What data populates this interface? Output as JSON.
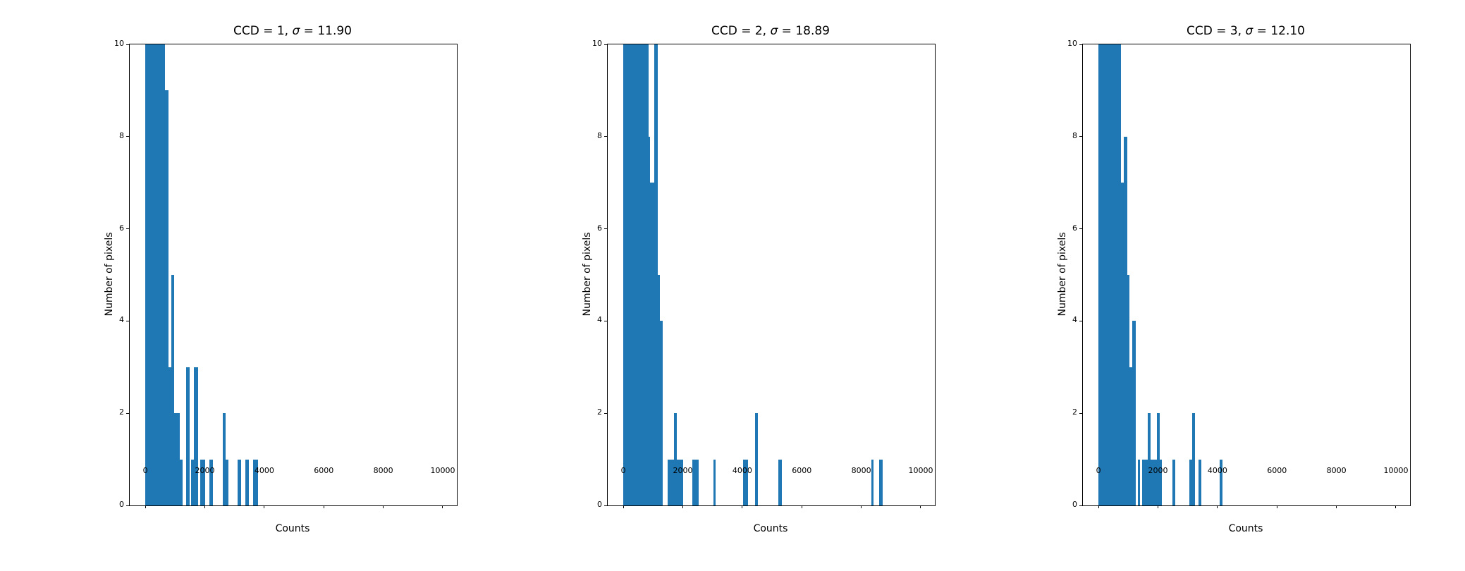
{
  "figure": {
    "background": "#ffffff",
    "bar_color": "#1f77b4",
    "spine_color": "#000000",
    "text_color": "#000000"
  },
  "chart_data": [
    {
      "type": "bar",
      "title": "CCD = 1, σ = 11.90",
      "title_prefix": "CCD = 1, ",
      "sigma_symbol": "σ",
      "title_suffix": " = 11.90",
      "ccd": 1,
      "sigma": 11.9,
      "xlabel": "Counts",
      "ylabel": "Number of pixels",
      "xlim": [
        -525,
        10475
      ],
      "ylim": [
        0,
        10
      ],
      "xticks": [
        0,
        2000,
        4000,
        6000,
        8000,
        10000
      ],
      "yticks": [
        0,
        2,
        4,
        6,
        8,
        10
      ],
      "grid": false,
      "legend": null,
      "note": "tallest bars are clipped at the y-axis top (10)",
      "bars": [
        {
          "x0": 0,
          "x1": 660,
          "h": 10
        },
        {
          "x0": 660,
          "x1": 780,
          "h": 9
        },
        {
          "x0": 780,
          "x1": 880,
          "h": 3
        },
        {
          "x0": 880,
          "x1": 980,
          "h": 5
        },
        {
          "x0": 980,
          "x1": 1160,
          "h": 2
        },
        {
          "x0": 1160,
          "x1": 1260,
          "h": 1
        },
        {
          "x0": 1360,
          "x1": 1500,
          "h": 3
        },
        {
          "x0": 1540,
          "x1": 1640,
          "h": 1
        },
        {
          "x0": 1640,
          "x1": 1780,
          "h": 3
        },
        {
          "x0": 1855,
          "x1": 2000,
          "h": 1
        },
        {
          "x0": 2155,
          "x1": 2275,
          "h": 1
        },
        {
          "x0": 2605,
          "x1": 2700,
          "h": 2
        },
        {
          "x0": 2700,
          "x1": 2790,
          "h": 1
        },
        {
          "x0": 3095,
          "x1": 3225,
          "h": 1
        },
        {
          "x0": 3355,
          "x1": 3475,
          "h": 1
        },
        {
          "x0": 3630,
          "x1": 3790,
          "h": 1
        }
      ]
    },
    {
      "type": "bar",
      "title": "CCD = 2, σ = 18.89",
      "title_prefix": "CCD = 2, ",
      "sigma_symbol": "σ",
      "title_suffix": " = 18.89",
      "ccd": 2,
      "sigma": 18.89,
      "xlabel": "Counts",
      "ylabel": "Number of pixels",
      "xlim": [
        -525,
        10475
      ],
      "ylim": [
        0,
        10
      ],
      "xticks": [
        0,
        2000,
        4000,
        6000,
        8000,
        10000
      ],
      "yticks": [
        0,
        2,
        4,
        6,
        8,
        10
      ],
      "grid": false,
      "legend": null,
      "note": "tallest bars are clipped at the y-axis top (10)",
      "bars": [
        {
          "x0": 0,
          "x1": 840,
          "h": 10
        },
        {
          "x0": 840,
          "x1": 890,
          "h": 8
        },
        {
          "x0": 890,
          "x1": 1040,
          "h": 7
        },
        {
          "x0": 1040,
          "x1": 1160,
          "h": 10
        },
        {
          "x0": 1160,
          "x1": 1240,
          "h": 5
        },
        {
          "x0": 1240,
          "x1": 1330,
          "h": 4
        },
        {
          "x0": 1500,
          "x1": 1710,
          "h": 1
        },
        {
          "x0": 1710,
          "x1": 1790,
          "h": 2
        },
        {
          "x0": 1790,
          "x1": 2010,
          "h": 1
        },
        {
          "x0": 2310,
          "x1": 2540,
          "h": 1
        },
        {
          "x0": 3030,
          "x1": 3105,
          "h": 1
        },
        {
          "x0": 4030,
          "x1": 4190,
          "h": 1
        },
        {
          "x0": 4420,
          "x1": 4530,
          "h": 2
        },
        {
          "x0": 5210,
          "x1": 5320,
          "h": 1
        },
        {
          "x0": 8330,
          "x1": 8410,
          "h": 1
        },
        {
          "x0": 8610,
          "x1": 8730,
          "h": 1
        }
      ]
    },
    {
      "type": "bar",
      "title": "CCD = 3, σ = 12.10",
      "title_prefix": "CCD = 3, ",
      "sigma_symbol": "σ",
      "title_suffix": " = 12.10",
      "ccd": 3,
      "sigma": 12.1,
      "xlabel": "Counts",
      "ylabel": "Number of pixels",
      "xlim": [
        -525,
        10475
      ],
      "ylim": [
        0,
        10
      ],
      "xticks": [
        0,
        2000,
        4000,
        6000,
        8000,
        10000
      ],
      "yticks": [
        0,
        2,
        4,
        6,
        8,
        10
      ],
      "grid": false,
      "legend": null,
      "note": "tallest bars are clipped at the y-axis top (10)",
      "bars": [
        {
          "x0": 0,
          "x1": 750,
          "h": 10
        },
        {
          "x0": 750,
          "x1": 845,
          "h": 7
        },
        {
          "x0": 845,
          "x1": 965,
          "h": 8
        },
        {
          "x0": 965,
          "x1": 1050,
          "h": 5
        },
        {
          "x0": 1050,
          "x1": 1145,
          "h": 3
        },
        {
          "x0": 1145,
          "x1": 1265,
          "h": 4
        },
        {
          "x0": 1320,
          "x1": 1390,
          "h": 1
        },
        {
          "x0": 1470,
          "x1": 1660,
          "h": 1
        },
        {
          "x0": 1660,
          "x1": 1755,
          "h": 2
        },
        {
          "x0": 1755,
          "x1": 1975,
          "h": 1
        },
        {
          "x0": 1975,
          "x1": 2070,
          "h": 2
        },
        {
          "x0": 2070,
          "x1": 2130,
          "h": 1
        },
        {
          "x0": 2480,
          "x1": 2570,
          "h": 1
        },
        {
          "x0": 3060,
          "x1": 3145,
          "h": 1
        },
        {
          "x0": 3150,
          "x1": 3240,
          "h": 2
        },
        {
          "x0": 3360,
          "x1": 3450,
          "h": 1
        },
        {
          "x0": 4070,
          "x1": 4170,
          "h": 1
        }
      ]
    }
  ]
}
